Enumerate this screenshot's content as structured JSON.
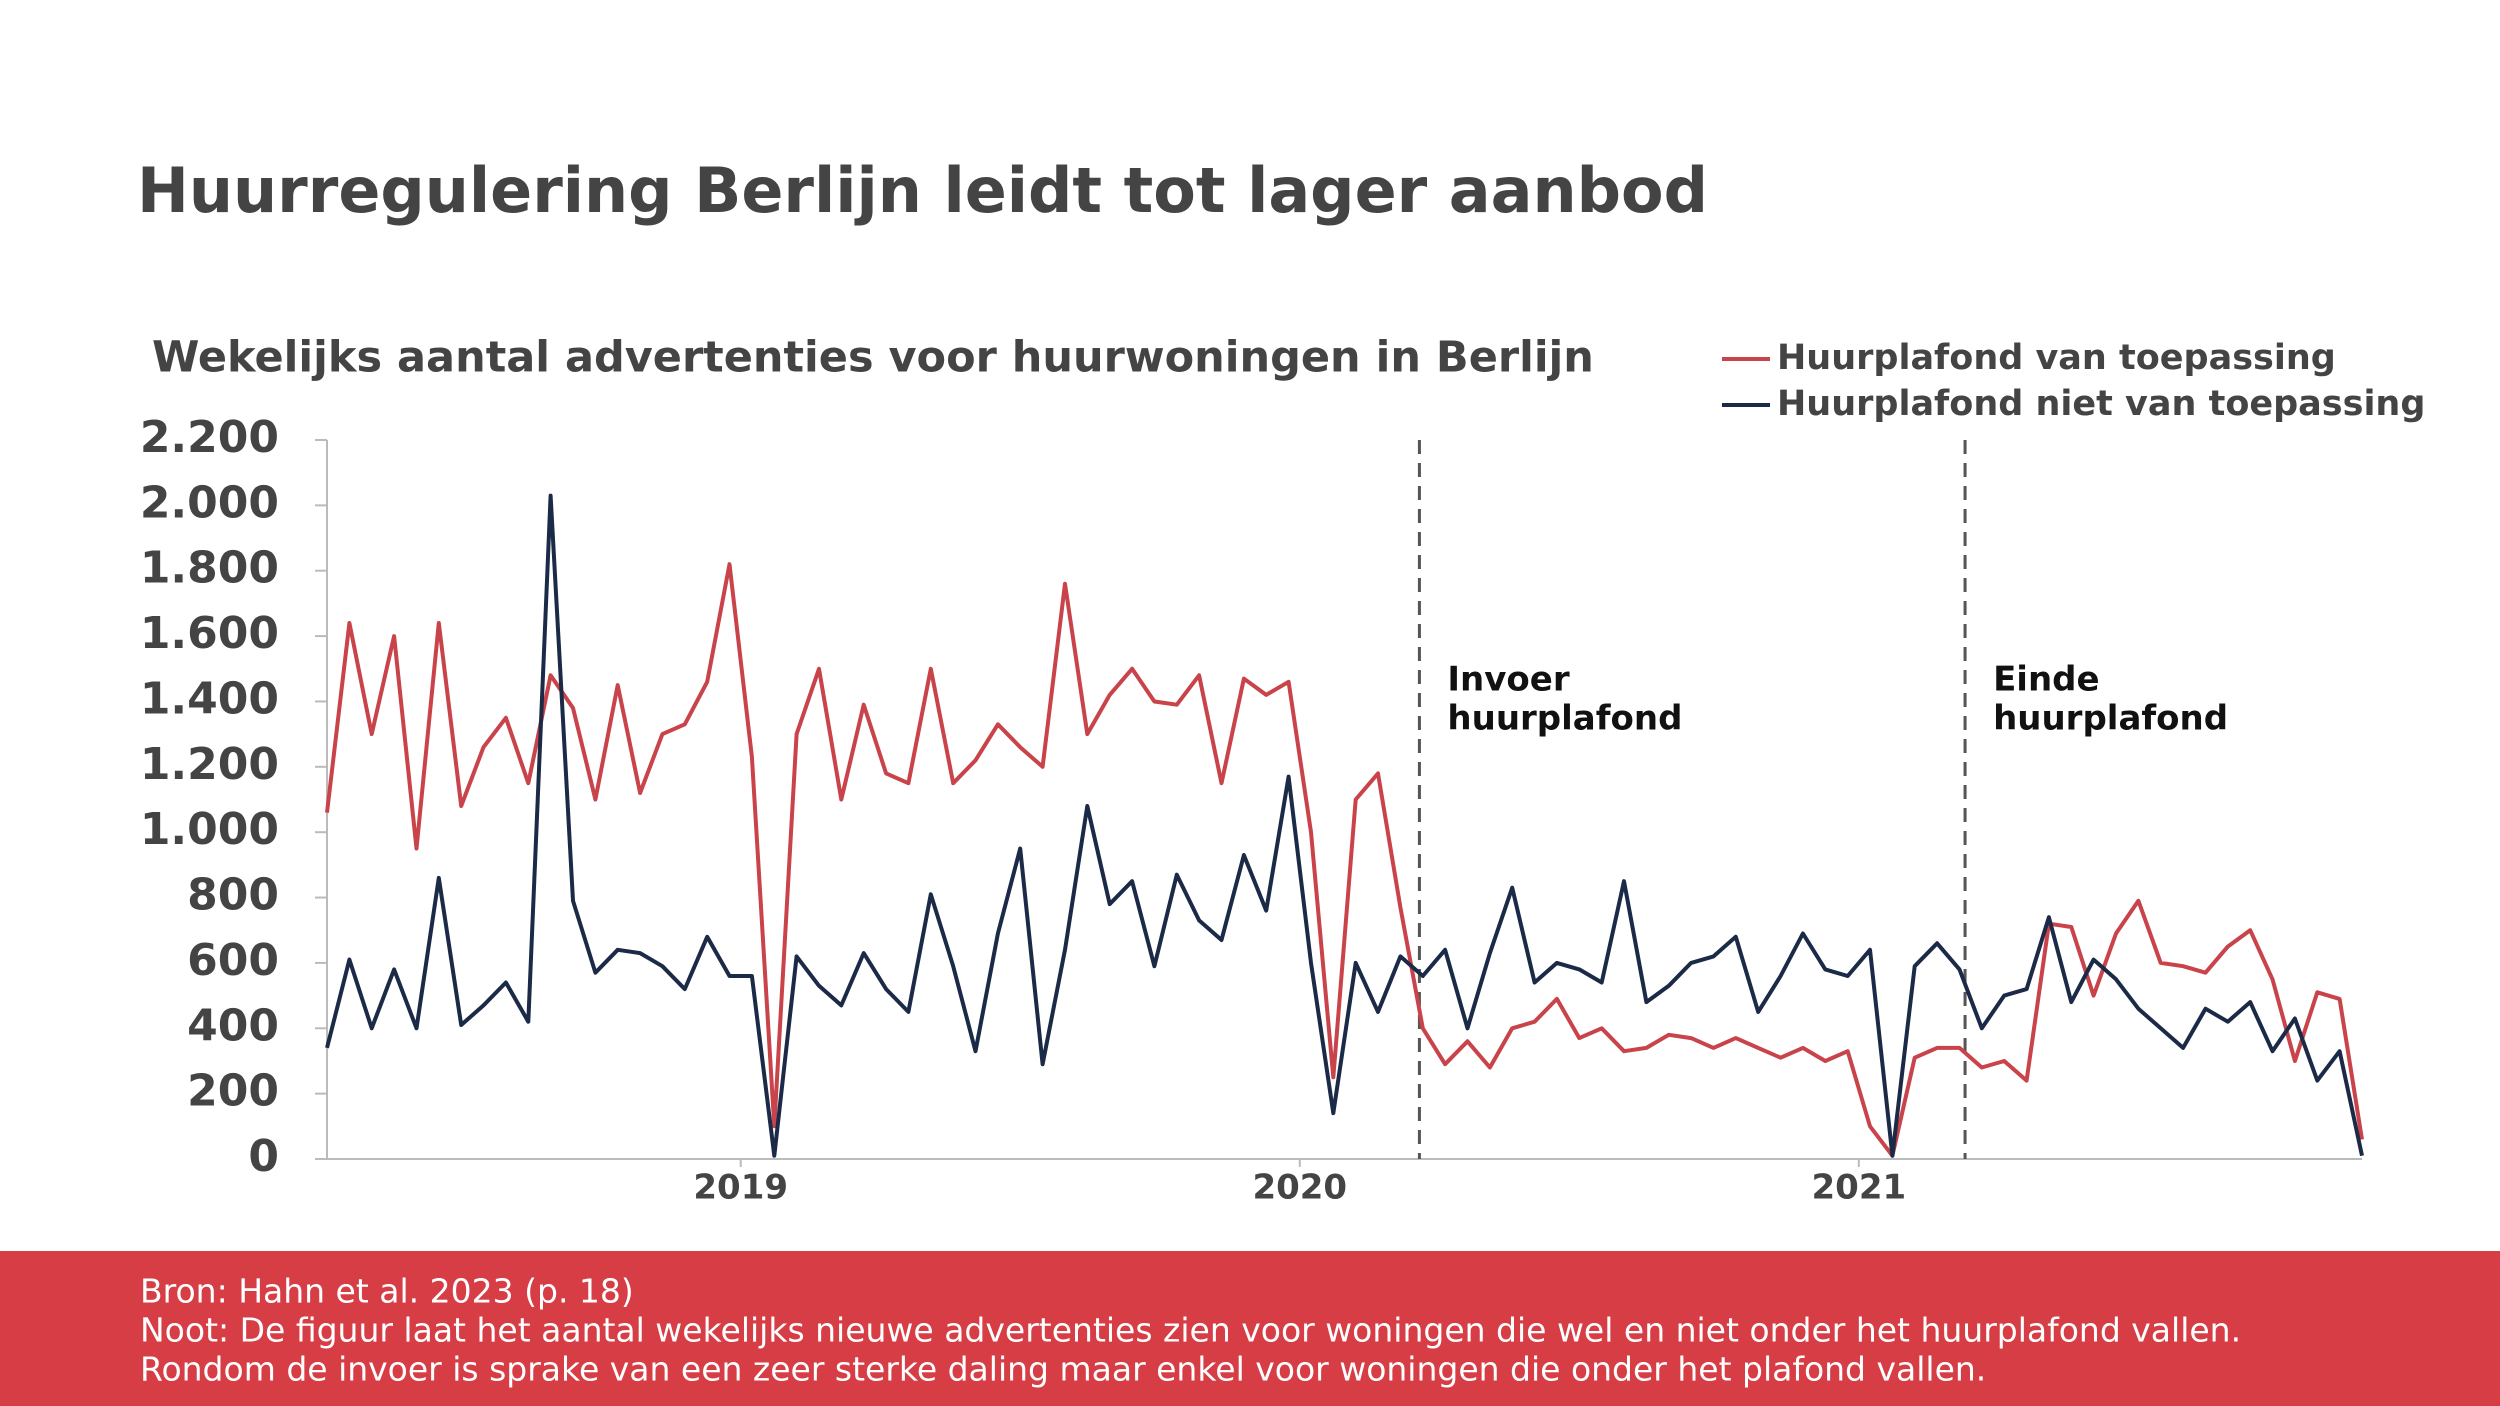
{
  "chart_data": {
    "type": "line",
    "title": "Huurregulering Berlijn leidt tot lager aanbod",
    "subtitle": "Wekelijks aantal advertenties voor huurwoningen in Berlijn",
    "x": [
      2018.26,
      2018.3,
      2018.34,
      2018.38,
      2018.42,
      2018.46,
      2018.5,
      2018.54,
      2018.58,
      2018.62,
      2018.66,
      2018.7,
      2018.74,
      2018.78,
      2018.82,
      2018.86,
      2018.9,
      2018.94,
      2018.98,
      2019.02,
      2019.06,
      2019.1,
      2019.14,
      2019.18,
      2019.22,
      2019.26,
      2019.3,
      2019.34,
      2019.38,
      2019.42,
      2019.46,
      2019.5,
      2019.54,
      2019.58,
      2019.62,
      2019.66,
      2019.7,
      2019.74,
      2019.78,
      2019.82,
      2019.86,
      2019.9,
      2019.94,
      2019.98,
      2020.02,
      2020.06,
      2020.1,
      2020.14,
      2020.18,
      2020.22,
      2020.26,
      2020.3,
      2020.34,
      2020.38,
      2020.42,
      2020.46,
      2020.5,
      2020.54,
      2020.58,
      2020.62,
      2020.66,
      2020.7,
      2020.74,
      2020.78,
      2020.82,
      2020.86,
      2020.9,
      2020.94,
      2020.98,
      2021.02,
      2021.06,
      2021.1,
      2021.14,
      2021.18,
      2021.22,
      2021.26,
      2021.3,
      2021.34,
      2021.38,
      2021.42,
      2021.46,
      2021.5,
      2021.54,
      2021.58,
      2021.62,
      2021.66,
      2021.7,
      2021.74,
      2021.78,
      2021.82,
      2021.86,
      2021.9
    ],
    "series": [
      {
        "name": "Huurplafond van toepassing",
        "color": "#c9434b",
        "values": [
          1060,
          1640,
          1300,
          1600,
          950,
          1640,
          1080,
          1260,
          1350,
          1150,
          1480,
          1380,
          1100,
          1450,
          1120,
          1300,
          1330,
          1460,
          1820,
          1230,
          100,
          1300,
          1500,
          1100,
          1390,
          1180,
          1150,
          1500,
          1150,
          1220,
          1330,
          1260,
          1200,
          1760,
          1300,
          1420,
          1500,
          1400,
          1390,
          1480,
          1150,
          1470,
          1420,
          1460,
          1000,
          250,
          1100,
          1180,
          770,
          400,
          290,
          360,
          280,
          400,
          420,
          490,
          370,
          400,
          330,
          340,
          380,
          370,
          340,
          370,
          340,
          310,
          340,
          300,
          330,
          100,
          10,
          310,
          340,
          340,
          280,
          300,
          240,
          720,
          710,
          500,
          690,
          790,
          600,
          590,
          570,
          650,
          700,
          550,
          300,
          510,
          490,
          60
        ]
      },
      {
        "name": "Huurplafond niet van toepassing",
        "color": "#1b2a47",
        "values": [
          340,
          610,
          400,
          580,
          400,
          860,
          410,
          470,
          540,
          420,
          2030,
          790,
          570,
          640,
          630,
          590,
          520,
          680,
          560,
          560,
          10,
          620,
          530,
          470,
          630,
          520,
          450,
          810,
          590,
          330,
          690,
          950,
          290,
          640,
          1080,
          780,
          850,
          590,
          870,
          730,
          670,
          930,
          760,
          1170,
          600,
          140,
          600,
          450,
          620,
          560,
          640,
          400,
          630,
          830,
          540,
          600,
          580,
          540,
          850,
          480,
          530,
          600,
          620,
          680,
          450,
          560,
          690,
          580,
          560,
          640,
          10,
          590,
          660,
          580,
          400,
          500,
          520,
          740,
          480,
          610,
          550,
          460,
          400,
          340,
          460,
          420,
          480,
          330,
          430,
          240,
          330,
          10
        ]
      }
    ],
    "xlim": [
      2018.26,
      2021.9
    ],
    "xticks": [
      2019,
      2020,
      2021
    ],
    "ylim": [
      0,
      2200
    ],
    "yticks": [
      0,
      200,
      400,
      600,
      800,
      {
        "value": 1000,
        "label": "1.000"
      },
      {
        "value": 1200,
        "label": "1.200"
      },
      {
        "value": 1400,
        "label": "1.400"
      },
      {
        "value": 1600,
        "label": "1.600"
      },
      {
        "value": 1800,
        "label": "1.800"
      },
      {
        "value": 2000,
        "label": "2.000"
      },
      {
        "value": 2200,
        "label": "2.200"
      }
    ],
    "grid": false,
    "annotations": [
      {
        "x": 2020.214,
        "lines": [
          "Invoer",
          "huurplafond"
        ]
      },
      {
        "x": 2021.19,
        "lines": [
          "Einde",
          "huurplafond"
        ]
      }
    ]
  },
  "footer": {
    "lines": [
      "Bron: Hahn et al. 2023 (p. 18)",
      "Noot: De figuur laat het aantal wekelijks nieuwe advertenties zien voor woningen die wel en niet onder het huurplafond vallen.",
      "Rondom de invoer is sprake van een zeer sterke daling maar enkel voor woningen die onder het plafond vallen."
    ]
  }
}
